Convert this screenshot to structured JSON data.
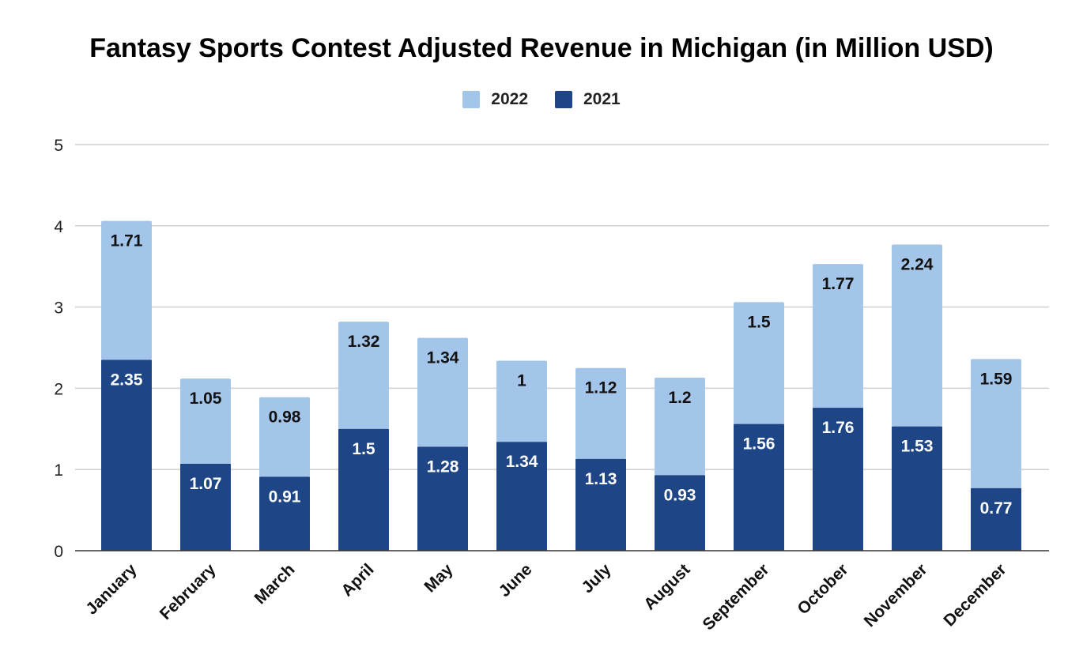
{
  "chart_data": {
    "type": "bar",
    "stacked": true,
    "title": "Fantasy Sports Contest Adjusted Revenue in Michigan (in Million USD)",
    "xlabel": "",
    "ylabel": "",
    "ylim": [
      0,
      5
    ],
    "yticks": [
      "0",
      "1",
      "2",
      "3",
      "4",
      "5"
    ],
    "grid": true,
    "legend_position": "top-center",
    "categories": [
      "January",
      "February",
      "March",
      "April",
      "May",
      "June",
      "July",
      "August",
      "September",
      "October",
      "November",
      "December"
    ],
    "series": [
      {
        "name": "2021",
        "color": "#1e4586",
        "label_color": "#ffffff",
        "values": [
          2.35,
          1.07,
          0.91,
          1.5,
          1.28,
          1.34,
          1.13,
          0.93,
          1.56,
          1.76,
          1.53,
          0.77
        ],
        "labels": [
          "2.35",
          "1.07",
          "0.91",
          "1.5",
          "1.28",
          "1.34",
          "1.13",
          "0.93",
          "1.56",
          "1.76",
          "1.53",
          "0.77"
        ]
      },
      {
        "name": "2022",
        "color": "#a3c5e9",
        "label_color": "#111111",
        "values": [
          1.71,
          1.05,
          0.98,
          1.32,
          1.34,
          1,
          1.12,
          1.2,
          1.5,
          1.77,
          2.24,
          1.59
        ],
        "labels": [
          "1.71",
          "1.05",
          "0.98",
          "1.32",
          "1.34",
          "1",
          "1.12",
          "1.2",
          "1.5",
          "1.77",
          "2.24",
          "1.59"
        ]
      }
    ],
    "legend_order": [
      "2022",
      "2021"
    ]
  }
}
